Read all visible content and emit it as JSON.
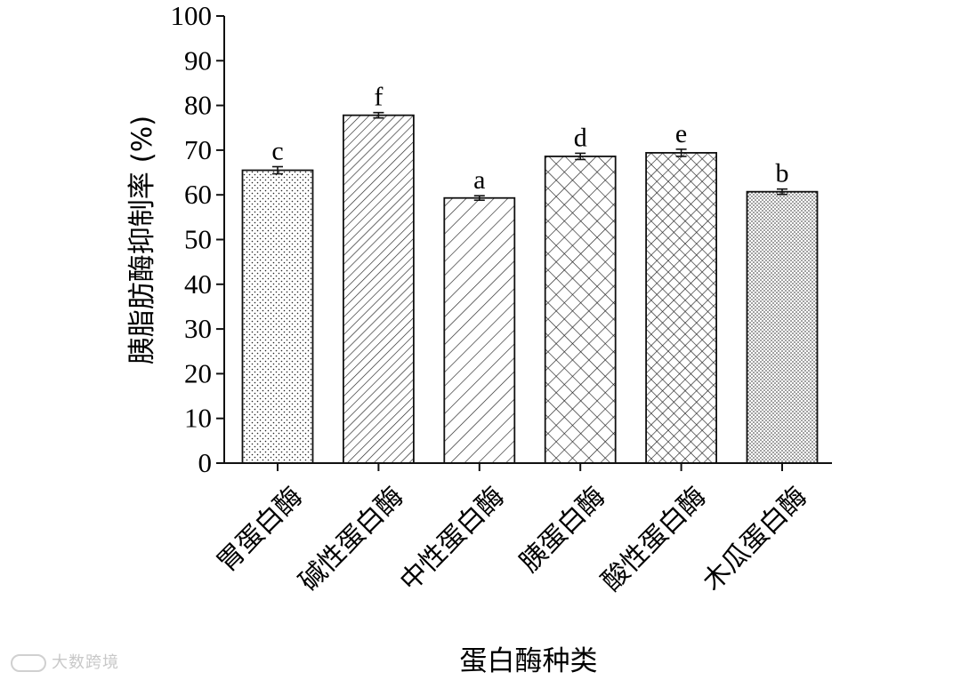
{
  "chart_data": {
    "type": "bar",
    "categories": [
      "胃蛋白酶",
      "碱性蛋白酶",
      "中性蛋白酶",
      "胰蛋白酶",
      "酸性蛋白酶",
      "木瓜蛋白酶"
    ],
    "values": [
      65.5,
      77.8,
      59.3,
      68.6,
      69.4,
      60.7
    ],
    "errors": [
      0.8,
      0.6,
      0.5,
      0.7,
      0.8,
      0.6
    ],
    "significance_letters": [
      "c",
      "f",
      "a",
      "d",
      "e",
      "b"
    ],
    "fill_patterns": [
      "sparse-dots",
      "diagonal-dense",
      "diagonal-sparse",
      "crosshatch-sparse",
      "crosshatch-dense",
      "dense-dots"
    ],
    "xlabel": "蛋白酶种类",
    "ylabel": "胰脂肪酶抑制率 (%)",
    "ylim": [
      0,
      100
    ],
    "yticks": [
      0,
      10,
      20,
      30,
      40,
      50,
      60,
      70,
      80,
      90,
      100
    ],
    "grid": false,
    "legend": "none"
  },
  "watermark": {
    "text": "大数跨境"
  }
}
